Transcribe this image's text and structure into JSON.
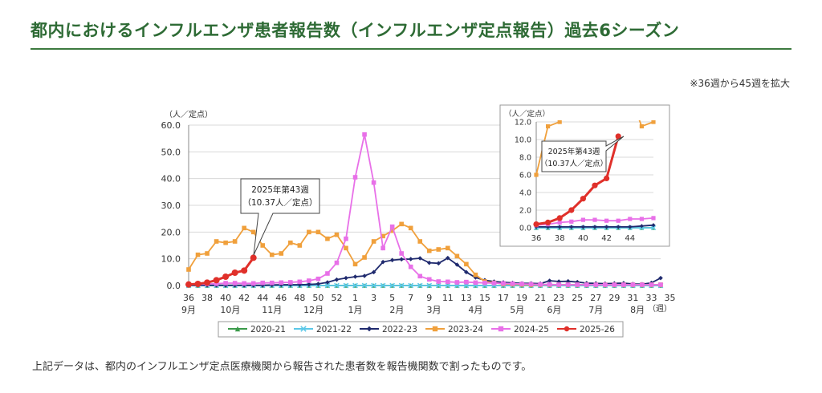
{
  "header": {
    "title": "都内におけるインフルエンザ患者報告数（インフルエンザ定点報告）過去6シーズン",
    "note": "※36週から45週を拡大"
  },
  "footer": {
    "text": "上記データは、都内のインフルエンザ定点医療機関から報告された患者数を報告機関数で割ったものです。"
  },
  "chart_data": {
    "type": "line",
    "ylabel": "（人／定点）",
    "xunit": "（週）",
    "ylim": [
      0,
      60
    ],
    "yticks": [
      "0.0",
      "10.0",
      "20.0",
      "30.0",
      "40.0",
      "50.0",
      "60.0"
    ],
    "week_labels": [
      "36",
      "38",
      "40",
      "42",
      "44",
      "46",
      "48",
      "50",
      "52",
      "1",
      "3",
      "5",
      "7",
      "9",
      "11",
      "13",
      "15",
      "17",
      "19",
      "21",
      "23",
      "25",
      "27",
      "29",
      "31",
      "33",
      "35"
    ],
    "month_labels": [
      "9月",
      "10月",
      "11月",
      "12月",
      "1月",
      "2月",
      "3月",
      "4月",
      "5月",
      "6月",
      "7月",
      "8月"
    ],
    "week_count": 52,
    "series": [
      {
        "name": "2020-21",
        "color": "#3a9a4a",
        "marker": "triangle",
        "values": [
          0,
          0,
          0,
          0,
          0,
          0,
          0,
          0,
          0,
          0,
          0,
          0,
          0,
          0,
          0,
          0,
          0,
          0,
          0,
          0,
          0,
          0,
          0,
          0,
          0,
          0,
          0,
          0,
          0,
          0,
          0,
          0,
          0,
          0,
          0,
          0,
          0,
          0,
          0,
          0,
          0,
          0,
          0,
          0,
          0,
          0,
          0,
          0,
          0,
          0,
          0,
          0
        ]
      },
      {
        "name": "2021-22",
        "color": "#5bc8e8",
        "marker": "x",
        "values": [
          0,
          0,
          0,
          0,
          0,
          0,
          0,
          0,
          0,
          0,
          0,
          0,
          0,
          0,
          0,
          0,
          0,
          0,
          0,
          0,
          0,
          0,
          0,
          0,
          0,
          0,
          0,
          0,
          0,
          0,
          0,
          0,
          0,
          0,
          0,
          0,
          0,
          0,
          0,
          0,
          0,
          0,
          0,
          0,
          0,
          0,
          0,
          0,
          0,
          0,
          0,
          0
        ]
      },
      {
        "name": "2022-23",
        "color": "#1f2a6e",
        "marker": "diamond",
        "values": [
          0.1,
          0.1,
          0.1,
          0.1,
          0.1,
          0.1,
          0.1,
          0.1,
          0.1,
          0.2,
          0.3,
          0.3,
          0.3,
          0.4,
          0.6,
          1.2,
          2.2,
          2.8,
          3.3,
          3.6,
          5,
          8.8,
          9.5,
          9.8,
          9.9,
          10.2,
          8.5,
          8.3,
          10.3,
          7.8,
          5,
          3,
          2,
          1.5,
          1.2,
          1,
          0.8,
          0.8,
          0.7,
          1.8,
          1.5,
          1.6,
          1.3,
          0.9,
          0.8,
          0.7,
          0.8,
          0.9,
          0.6,
          0.5,
          1,
          2.8
        ]
      },
      {
        "name": "2023-24",
        "color": "#f0a03c",
        "marker": "square",
        "values": [
          6,
          11.5,
          12,
          16.5,
          16,
          16.5,
          21.5,
          20,
          15,
          11.5,
          12,
          16,
          15,
          20,
          20,
          17.5,
          19,
          14,
          8,
          10.5,
          16.5,
          18.5,
          20.5,
          23,
          21.5,
          16.5,
          13,
          13.5,
          14,
          11,
          8,
          4,
          1.5,
          1,
          0.6,
          0.5,
          0.4,
          0.3,
          0.3,
          0.3,
          0.3,
          0.3,
          0.3,
          0.3,
          0.3,
          0.3,
          0.3,
          0.3,
          0.3,
          0.3,
          0.3,
          0.3
        ]
      },
      {
        "name": "2024-25",
        "color": "#e870e8",
        "marker": "square",
        "values": [
          0.3,
          0.4,
          0.6,
          0.7,
          0.9,
          0.9,
          0.8,
          0.8,
          1.0,
          1.0,
          1.1,
          1.2,
          1.4,
          1.8,
          2.5,
          4.5,
          8.5,
          17.5,
          40.5,
          56.5,
          38.5,
          14,
          22,
          12,
          7,
          3.5,
          2.3,
          1.5,
          1.4,
          1.2,
          1.3,
          1.1,
          1.0,
          0.9,
          0.8,
          0.7,
          0.6,
          0.5,
          0.4,
          0.4,
          0.3,
          0.3,
          0.3,
          0.3,
          0.3,
          0.3,
          0.3,
          0.3,
          0.3,
          0.3,
          0.3,
          0.3
        ]
      },
      {
        "name": "2025-26",
        "color": "#e0302a",
        "marker": "circle",
        "values": [
          0.4,
          0.6,
          1.1,
          2,
          3.3,
          4.8,
          5.6,
          10.37
        ]
      }
    ],
    "callout": {
      "line1": "2025年第43週",
      "line2": "（10.37人／定点）"
    },
    "inset": {
      "ylabel": "（人／定点）",
      "ylim": [
        0,
        12
      ],
      "yticks": [
        "0.0",
        "2.0",
        "4.0",
        "6.0",
        "8.0",
        "10.0",
        "12.0"
      ],
      "xticks": [
        "36",
        "38",
        "40",
        "42",
        "44"
      ],
      "callout": {
        "line1": "2025年第43週",
        "line2": "（10.37人／定点）"
      }
    }
  }
}
